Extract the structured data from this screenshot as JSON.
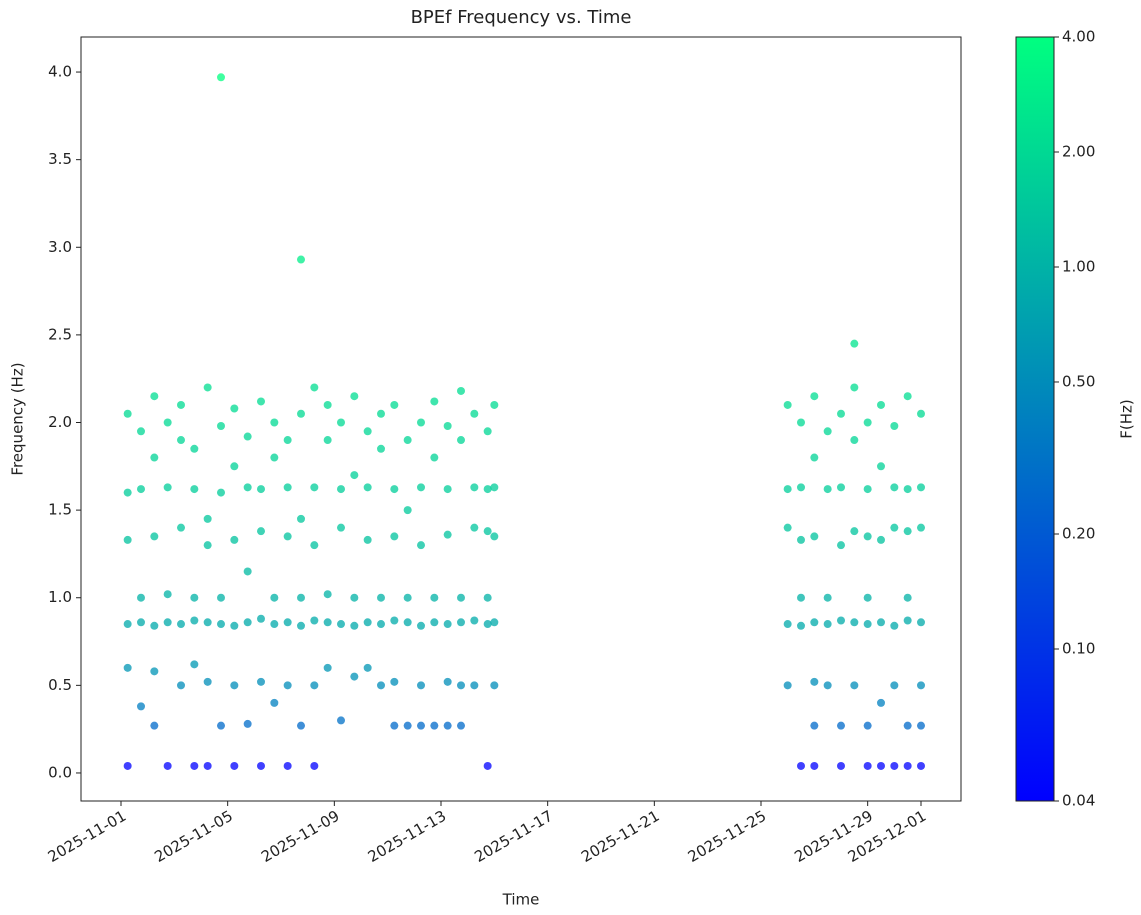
{
  "chart_data": {
    "type": "scatter",
    "title": "BPEf Frequency vs. Time",
    "xlabel": "Time",
    "ylabel": "Frequency (Hz)",
    "x": [
      "2025-11-01T06:00",
      "2025-11-01T06:00",
      "2025-11-01T06:00",
      "2025-11-01T06:00",
      "2025-11-01T06:00",
      "2025-11-01T06:00",
      "2025-11-01T18:00",
      "2025-11-01T18:00",
      "2025-11-01T18:00",
      "2025-11-01T18:00",
      "2025-11-01T18:00",
      "2025-11-02T06:00",
      "2025-11-02T06:00",
      "2025-11-02T06:00",
      "2025-11-02T06:00",
      "2025-11-02T06:00",
      "2025-11-02T06:00",
      "2025-11-02T18:00",
      "2025-11-02T18:00",
      "2025-11-02T18:00",
      "2025-11-02T18:00",
      "2025-11-02T18:00",
      "2025-11-03T06:00",
      "2025-11-03T06:00",
      "2025-11-03T06:00",
      "2025-11-03T06:00",
      "2025-11-03T06:00",
      "2025-11-03T18:00",
      "2025-11-03T18:00",
      "2025-11-03T18:00",
      "2025-11-03T18:00",
      "2025-11-03T18:00",
      "2025-11-03T18:00",
      "2025-11-04T06:00",
      "2025-11-04T06:00",
      "2025-11-04T06:00",
      "2025-11-04T06:00",
      "2025-11-04T06:00",
      "2025-11-04T06:00",
      "2025-11-04T18:00",
      "2025-11-04T18:00",
      "2025-11-04T18:00",
      "2025-11-04T18:00",
      "2025-11-04T18:00",
      "2025-11-04T18:00",
      "2025-11-05T06:00",
      "2025-11-05T06:00",
      "2025-11-05T06:00",
      "2025-11-05T06:00",
      "2025-11-05T06:00",
      "2025-11-05T06:00",
      "2025-11-05T18:00",
      "2025-11-05T18:00",
      "2025-11-05T18:00",
      "2025-11-05T18:00",
      "2025-11-05T18:00",
      "2025-11-06T06:00",
      "2025-11-06T06:00",
      "2025-11-06T06:00",
      "2025-11-06T06:00",
      "2025-11-06T06:00",
      "2025-11-06T06:00",
      "2025-11-06T18:00",
      "2025-11-06T18:00",
      "2025-11-06T18:00",
      "2025-11-06T18:00",
      "2025-11-06T18:00",
      "2025-11-07T06:00",
      "2025-11-07T06:00",
      "2025-11-07T06:00",
      "2025-11-07T06:00",
      "2025-11-07T06:00",
      "2025-11-07T06:00",
      "2025-11-07T18:00",
      "2025-11-07T18:00",
      "2025-11-07T18:00",
      "2025-11-07T18:00",
      "2025-11-07T18:00",
      "2025-11-07T18:00",
      "2025-11-08T06:00",
      "2025-11-08T06:00",
      "2025-11-08T06:00",
      "2025-11-08T06:00",
      "2025-11-08T06:00",
      "2025-11-08T06:00",
      "2025-11-08T18:00",
      "2025-11-08T18:00",
      "2025-11-08T18:00",
      "2025-11-08T18:00",
      "2025-11-08T18:00",
      "2025-11-09T06:00",
      "2025-11-09T06:00",
      "2025-11-09T06:00",
      "2025-11-09T06:00",
      "2025-11-09T06:00",
      "2025-11-09T18:00",
      "2025-11-09T18:00",
      "2025-11-09T18:00",
      "2025-11-09T18:00",
      "2025-11-09T18:00",
      "2025-11-10T06:00",
      "2025-11-10T06:00",
      "2025-11-10T06:00",
      "2025-11-10T06:00",
      "2025-11-10T06:00",
      "2025-11-10T18:00",
      "2025-11-10T18:00",
      "2025-11-10T18:00",
      "2025-11-10T18:00",
      "2025-11-10T18:00",
      "2025-11-11T06:00",
      "2025-11-11T06:00",
      "2025-11-11T06:00",
      "2025-11-11T06:00",
      "2025-11-11T06:00",
      "2025-11-11T06:00",
      "2025-11-11T18:00",
      "2025-11-11T18:00",
      "2025-11-11T18:00",
      "2025-11-11T18:00",
      "2025-11-11T18:00",
      "2025-11-12T06:00",
      "2025-11-12T06:00",
      "2025-11-12T06:00",
      "2025-11-12T06:00",
      "2025-11-12T06:00",
      "2025-11-12T06:00",
      "2025-11-12T18:00",
      "2025-11-12T18:00",
      "2025-11-12T18:00",
      "2025-11-12T18:00",
      "2025-11-12T18:00",
      "2025-11-13T06:00",
      "2025-11-13T06:00",
      "2025-11-13T06:00",
      "2025-11-13T06:00",
      "2025-11-13T06:00",
      "2025-11-13T06:00",
      "2025-11-13T18:00",
      "2025-11-13T18:00",
      "2025-11-13T18:00",
      "2025-11-13T18:00",
      "2025-11-13T18:00",
      "2025-11-13T18:00",
      "2025-11-14T06:00",
      "2025-11-14T06:00",
      "2025-11-14T06:00",
      "2025-11-14T06:00",
      "2025-11-14T06:00",
      "2025-11-14T18:00",
      "2025-11-14T18:00",
      "2025-11-14T18:00",
      "2025-11-14T18:00",
      "2025-11-14T18:00",
      "2025-11-14T18:00",
      "2025-11-15T00:00",
      "2025-11-15T00:00",
      "2025-11-15T00:00",
      "2025-11-15T00:00",
      "2025-11-15T00:00",
      "2025-11-26T00:00",
      "2025-11-26T00:00",
      "2025-11-26T00:00",
      "2025-11-26T00:00",
      "2025-11-26T00:00",
      "2025-11-26T12:00",
      "2025-11-26T12:00",
      "2025-11-26T12:00",
      "2025-11-26T12:00",
      "2025-11-26T12:00",
      "2025-11-26T12:00",
      "2025-11-27T00:00",
      "2025-11-27T00:00",
      "2025-11-27T00:00",
      "2025-11-27T00:00",
      "2025-11-27T00:00",
      "2025-11-27T00:00",
      "2025-11-27T00:00",
      "2025-11-27T12:00",
      "2025-11-27T12:00",
      "2025-11-27T12:00",
      "2025-11-27T12:00",
      "2025-11-27T12:00",
      "2025-11-28T00:00",
      "2025-11-28T00:00",
      "2025-11-28T00:00",
      "2025-11-28T00:00",
      "2025-11-28T00:00",
      "2025-11-28T00:00",
      "2025-11-28T12:00",
      "2025-11-28T12:00",
      "2025-11-28T12:00",
      "2025-11-28T12:00",
      "2025-11-28T12:00",
      "2025-11-28T12:00",
      "2025-11-29T00:00",
      "2025-11-29T00:00",
      "2025-11-29T00:00",
      "2025-11-29T00:00",
      "2025-11-29T00:00",
      "2025-11-29T00:00",
      "2025-11-29T00:00",
      "2025-11-29T12:00",
      "2025-11-29T12:00",
      "2025-11-29T12:00",
      "2025-11-29T12:00",
      "2025-11-29T12:00",
      "2025-11-29T12:00",
      "2025-11-30T00:00",
      "2025-11-30T00:00",
      "2025-11-30T00:00",
      "2025-11-30T00:00",
      "2025-11-30T00:00",
      "2025-11-30T00:00",
      "2025-11-30T12:00",
      "2025-11-30T12:00",
      "2025-11-30T12:00",
      "2025-11-30T12:00",
      "2025-11-30T12:00",
      "2025-11-30T12:00",
      "2025-11-30T12:00",
      "2025-12-01T00:00",
      "2025-12-01T00:00",
      "2025-12-01T00:00",
      "2025-12-01T00:00",
      "2025-12-01T00:00",
      "2025-12-01T00:00",
      "2025-12-01T00:00"
    ],
    "y": [
      2.05,
      1.6,
      1.33,
      0.85,
      0.6,
      0.04,
      1.95,
      1.62,
      1.0,
      0.86,
      0.38,
      2.15,
      1.8,
      1.35,
      0.84,
      0.58,
      0.27,
      2.0,
      1.63,
      1.02,
      0.86,
      0.04,
      2.1,
      1.9,
      1.4,
      0.85,
      0.5,
      1.85,
      1.62,
      1.0,
      0.87,
      0.62,
      0.04,
      2.2,
      1.45,
      1.3,
      0.86,
      0.52,
      0.04,
      1.98,
      1.6,
      1.0,
      0.85,
      0.27,
      3.97,
      2.08,
      1.75,
      1.33,
      0.84,
      0.5,
      0.04,
      1.92,
      1.63,
      1.15,
      0.86,
      0.28,
      2.12,
      1.62,
      1.38,
      0.88,
      0.52,
      0.04,
      2.0,
      1.8,
      1.0,
      0.85,
      0.4,
      1.9,
      1.63,
      1.35,
      0.86,
      0.5,
      0.04,
      2.05,
      1.45,
      1.0,
      0.84,
      0.27,
      2.93,
      2.2,
      1.63,
      1.3,
      0.87,
      0.5,
      0.04,
      2.1,
      1.9,
      1.02,
      0.86,
      0.6,
      2.0,
      1.62,
      1.4,
      0.85,
      0.3,
      2.15,
      1.7,
      1.0,
      0.84,
      0.55,
      1.95,
      1.63,
      1.33,
      0.86,
      0.6,
      2.05,
      1.85,
      1.0,
      0.85,
      0.5,
      2.1,
      1.62,
      1.35,
      0.87,
      0.52,
      0.27,
      1.9,
      1.5,
      1.0,
      0.86,
      0.27,
      2.0,
      1.63,
      1.3,
      0.84,
      0.5,
      0.27,
      2.12,
      1.8,
      1.0,
      0.86,
      0.27,
      1.98,
      1.62,
      1.36,
      0.85,
      0.52,
      0.27,
      2.18,
      1.9,
      1.0,
      0.86,
      0.5,
      0.27,
      2.05,
      1.63,
      1.4,
      0.87,
      0.5,
      1.95,
      1.62,
      1.38,
      1.0,
      0.85,
      0.04,
      2.1,
      1.63,
      1.35,
      0.86,
      0.5,
      2.1,
      1.62,
      1.4,
      0.85,
      0.5,
      2.0,
      1.63,
      1.33,
      1.0,
      0.84,
      0.04,
      2.15,
      1.8,
      1.35,
      0.86,
      0.52,
      0.27,
      0.04,
      1.95,
      1.62,
      1.0,
      0.85,
      0.5,
      2.05,
      1.63,
      1.3,
      0.87,
      0.27,
      0.04,
      2.2,
      1.9,
      1.38,
      0.86,
      0.5,
      2.45,
      2.0,
      1.62,
      1.35,
      1.0,
      0.85,
      0.27,
      0.04,
      2.1,
      1.75,
      1.33,
      0.86,
      0.4,
      0.04,
      1.98,
      1.63,
      1.4,
      0.84,
      0.5,
      0.04,
      2.15,
      1.62,
      1.38,
      1.0,
      0.87,
      0.27,
      0.04,
      2.05,
      1.63,
      1.4,
      0.86,
      0.5,
      0.27,
      0.04
    ],
    "xlim": [
      "2025-10-30T12:00",
      "2025-12-02T12:00"
    ],
    "xticks": [
      "2025-11-01",
      "2025-11-05",
      "2025-11-09",
      "2025-11-13",
      "2025-11-17",
      "2025-11-21",
      "2025-11-25",
      "2025-11-29",
      "2025-12-01"
    ],
    "ylim": [
      -0.16,
      4.2
    ],
    "yticks": [
      {
        "value": 0,
        "label": "0.0"
      },
      0.5,
      {
        "value": 1,
        "label": "1.0"
      },
      1.5,
      {
        "value": 2,
        "label": "2.0"
      },
      2.5,
      {
        "value": 3,
        "label": "3.0"
      },
      3.5,
      {
        "value": 4,
        "label": "4.0"
      }
    ],
    "colorbar": {
      "label": "F(Hz)",
      "scale": "log",
      "clim": [
        0.04,
        4
      ],
      "colormap": [
        "#0000ff",
        "#00ff80"
      ],
      "ticks": [
        {
          "value": 0.04,
          "label": "0.04"
        },
        {
          "value": 0.1,
          "label": "0.10"
        },
        {
          "value": 0.2,
          "label": "0.20"
        },
        {
          "value": 0.5,
          "label": "0.50"
        },
        {
          "value": 1,
          "label": "1.00"
        },
        {
          "value": 2,
          "label": "2.00"
        },
        {
          "value": 4,
          "label": "4.00"
        }
      ]
    }
  }
}
